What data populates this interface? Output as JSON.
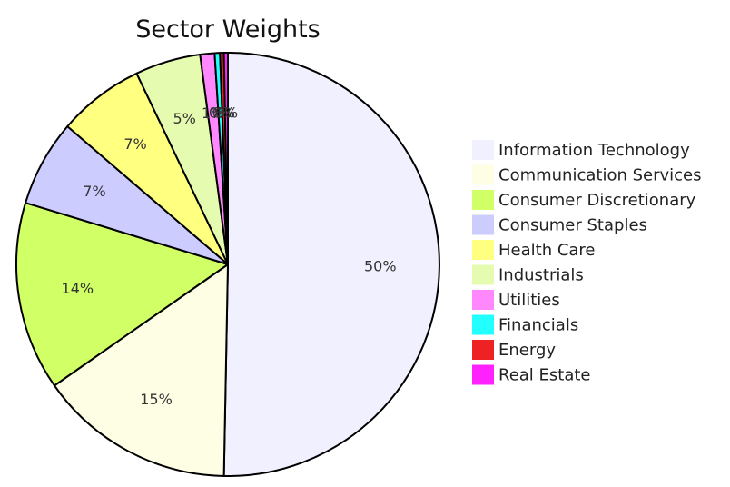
{
  "chart_data": {
    "type": "pie",
    "title": "Sector Weights",
    "legend_position": "right",
    "slices": [
      {
        "label": "Information Technology",
        "value": 50.3,
        "display": "50%",
        "color": "#f0f0fe"
      },
      {
        "label": "Communication Services",
        "value": 15.0,
        "display": "15%",
        "color": "#fefee4"
      },
      {
        "label": "Consumer Discretionary",
        "value": 14.4,
        "display": "14%",
        "color": "#d0ff66"
      },
      {
        "label": "Consumer Staples",
        "value": 6.6,
        "display": "7%",
        "color": "#ccccff"
      },
      {
        "label": "Health Care",
        "value": 6.6,
        "display": "7%",
        "color": "#ffff80"
      },
      {
        "label": "Industrials",
        "value": 5.0,
        "display": "5%",
        "color": "#e5fcb0"
      },
      {
        "label": "Utilities",
        "value": 1.1,
        "display": "1%",
        "color": "#ff88ff"
      },
      {
        "label": "Financials",
        "value": 0.4,
        "display": "0%",
        "color": "#22ffff"
      },
      {
        "label": "Energy",
        "value": 0.3,
        "display": "0%",
        "color": "#ee2222"
      },
      {
        "label": "Real Estate",
        "value": 0.3,
        "display": "0%",
        "color": "#ff22ff"
      }
    ]
  }
}
